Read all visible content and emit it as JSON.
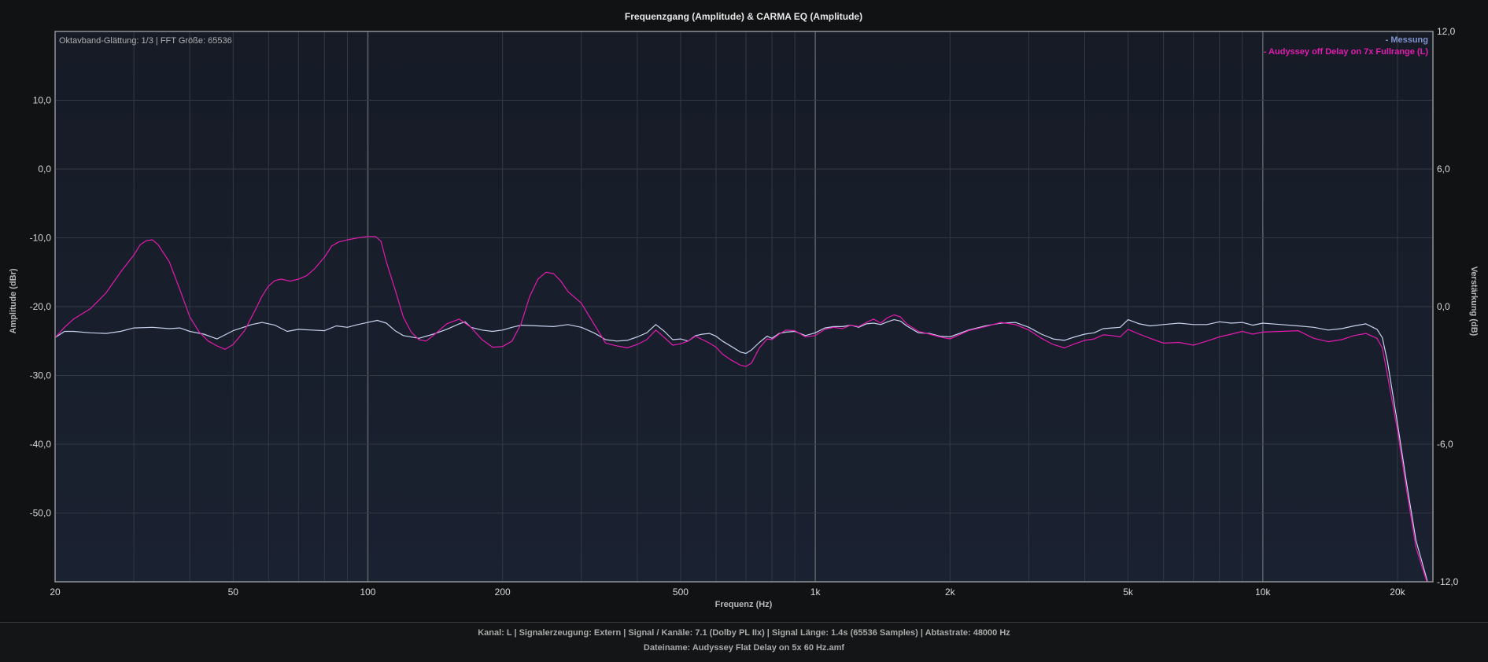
{
  "chart_data": {
    "type": "line",
    "title": "Frequenzgang (Amplitude) & CARMA EQ (Amplitude)",
    "annotation": "Oktavband-Glättung: 1/3 | FFT Größe: 65536",
    "xlabel": "Frequenz (Hz)",
    "ylabel": "Amplitude (dBr)",
    "y2label": "Verstärkung (dB)",
    "x_scale": "log",
    "xlim": [
      20,
      24000
    ],
    "ylim": [
      -60,
      20
    ],
    "y2lim": [
      -12,
      12
    ],
    "x_ticks": [
      {
        "value": 20,
        "label": "20"
      },
      {
        "value": 50,
        "label": "50"
      },
      {
        "value": 100,
        "label": "100"
      },
      {
        "value": 200,
        "label": "200"
      },
      {
        "value": 500,
        "label": "500"
      },
      {
        "value": 1000,
        "label": "1k"
      },
      {
        "value": 2000,
        "label": "2k"
      },
      {
        "value": 5000,
        "label": "5k"
      },
      {
        "value": 10000,
        "label": "10k"
      },
      {
        "value": 20000,
        "label": "20k"
      }
    ],
    "y_ticks": [
      {
        "value": 10,
        "label": "10,0"
      },
      {
        "value": 0,
        "label": "0,0"
      },
      {
        "value": -10,
        "label": "-10,0"
      },
      {
        "value": -20,
        "label": "-20,0"
      },
      {
        "value": -30,
        "label": "-30,0"
      },
      {
        "value": -40,
        "label": "-40,0"
      },
      {
        "value": -50,
        "label": "-50,0"
      }
    ],
    "y2_ticks": [
      {
        "value": 12,
        "label": "12,0"
      },
      {
        "value": 6,
        "label": "6,0"
      },
      {
        "value": 0,
        "label": "0,0"
      },
      {
        "value": -6,
        "label": "-6,0"
      },
      {
        "value": -12,
        "label": "-12,0"
      }
    ],
    "grid": true,
    "legend_position": "top-right",
    "series": [
      {
        "name": "- Messung",
        "color": "#c8d2ee",
        "points": [
          [
            20,
            -24.5
          ],
          [
            21,
            -23.6
          ],
          [
            22,
            -23.6
          ],
          [
            24,
            -23.8
          ],
          [
            26,
            -23.9
          ],
          [
            28,
            -23.6
          ],
          [
            30,
            -23.1
          ],
          [
            33,
            -23.0
          ],
          [
            36,
            -23.2
          ],
          [
            38,
            -23.1
          ],
          [
            40,
            -23.6
          ],
          [
            43,
            -24.0
          ],
          [
            46,
            -24.7
          ],
          [
            50,
            -23.5
          ],
          [
            55,
            -22.6
          ],
          [
            58,
            -22.3
          ],
          [
            62,
            -22.7
          ],
          [
            66,
            -23.6
          ],
          [
            70,
            -23.3
          ],
          [
            75,
            -23.4
          ],
          [
            80,
            -23.5
          ],
          [
            85,
            -22.8
          ],
          [
            90,
            -23.0
          ],
          [
            95,
            -22.6
          ],
          [
            100,
            -22.3
          ],
          [
            105,
            -22.0
          ],
          [
            110,
            -22.4
          ],
          [
            115,
            -23.5
          ],
          [
            120,
            -24.2
          ],
          [
            130,
            -24.6
          ],
          [
            140,
            -24.0
          ],
          [
            150,
            -23.3
          ],
          [
            160,
            -22.5
          ],
          [
            165,
            -22.2
          ],
          [
            170,
            -23.0
          ],
          [
            180,
            -23.4
          ],
          [
            190,
            -23.6
          ],
          [
            200,
            -23.4
          ],
          [
            210,
            -23.0
          ],
          [
            220,
            -22.7
          ],
          [
            240,
            -22.8
          ],
          [
            260,
            -22.9
          ],
          [
            280,
            -22.6
          ],
          [
            300,
            -23.0
          ],
          [
            320,
            -23.8
          ],
          [
            340,
            -24.8
          ],
          [
            360,
            -25.0
          ],
          [
            380,
            -24.9
          ],
          [
            400,
            -24.4
          ],
          [
            420,
            -23.8
          ],
          [
            440,
            -22.6
          ],
          [
            460,
            -23.6
          ],
          [
            480,
            -24.8
          ],
          [
            500,
            -24.7
          ],
          [
            520,
            -25.0
          ],
          [
            540,
            -24.2
          ],
          [
            560,
            -24.0
          ],
          [
            580,
            -23.9
          ],
          [
            600,
            -24.3
          ],
          [
            620,
            -25.0
          ],
          [
            650,
            -25.8
          ],
          [
            680,
            -26.6
          ],
          [
            700,
            -26.8
          ],
          [
            720,
            -26.3
          ],
          [
            750,
            -25.2
          ],
          [
            780,
            -24.3
          ],
          [
            800,
            -24.6
          ],
          [
            830,
            -23.9
          ],
          [
            860,
            -23.7
          ],
          [
            900,
            -23.6
          ],
          [
            950,
            -24.2
          ],
          [
            1000,
            -23.8
          ],
          [
            1050,
            -23.1
          ],
          [
            1100,
            -22.9
          ],
          [
            1150,
            -22.9
          ],
          [
            1200,
            -22.7
          ],
          [
            1250,
            -23.0
          ],
          [
            1300,
            -22.5
          ],
          [
            1350,
            -22.4
          ],
          [
            1400,
            -22.6
          ],
          [
            1450,
            -22.2
          ],
          [
            1500,
            -21.9
          ],
          [
            1550,
            -22.1
          ],
          [
            1600,
            -22.8
          ],
          [
            1700,
            -23.8
          ],
          [
            1800,
            -23.9
          ],
          [
            1900,
            -24.3
          ],
          [
            2000,
            -24.4
          ],
          [
            2200,
            -23.4
          ],
          [
            2400,
            -22.8
          ],
          [
            2600,
            -22.4
          ],
          [
            2800,
            -22.3
          ],
          [
            3000,
            -23.0
          ],
          [
            3200,
            -24.0
          ],
          [
            3400,
            -24.7
          ],
          [
            3600,
            -24.9
          ],
          [
            3800,
            -24.4
          ],
          [
            4000,
            -24.0
          ],
          [
            4200,
            -23.8
          ],
          [
            4400,
            -23.2
          ],
          [
            4600,
            -23.1
          ],
          [
            4800,
            -23.0
          ],
          [
            5000,
            -21.9
          ],
          [
            5300,
            -22.5
          ],
          [
            5600,
            -22.8
          ],
          [
            6000,
            -22.6
          ],
          [
            6500,
            -22.4
          ],
          [
            7000,
            -22.6
          ],
          [
            7500,
            -22.6
          ],
          [
            8000,
            -22.2
          ],
          [
            8500,
            -22.4
          ],
          [
            9000,
            -22.3
          ],
          [
            9500,
            -22.7
          ],
          [
            10000,
            -22.4
          ],
          [
            11000,
            -22.6
          ],
          [
            12000,
            -22.8
          ],
          [
            13000,
            -23.0
          ],
          [
            14000,
            -23.4
          ],
          [
            15000,
            -23.2
          ],
          [
            16000,
            -22.8
          ],
          [
            17000,
            -22.5
          ],
          [
            18000,
            -23.3
          ],
          [
            18500,
            -24.5
          ],
          [
            19000,
            -28
          ],
          [
            20000,
            -37
          ],
          [
            21000,
            -46
          ],
          [
            22000,
            -54
          ],
          [
            23000,
            -58.5
          ],
          [
            23800,
            -62
          ]
        ]
      },
      {
        "name": "- Audyssey off Delay on 7x Fullrange (L)",
        "color": "#e31bb0",
        "points": [
          [
            20,
            -24.5
          ],
          [
            21,
            -23.0
          ],
          [
            22,
            -21.8
          ],
          [
            24,
            -20.3
          ],
          [
            26,
            -18.0
          ],
          [
            28,
            -15.0
          ],
          [
            30,
            -12.5
          ],
          [
            31,
            -11.0
          ],
          [
            32,
            -10.4
          ],
          [
            33,
            -10.3
          ],
          [
            34,
            -11.0
          ],
          [
            36,
            -13.5
          ],
          [
            38,
            -17.5
          ],
          [
            40,
            -21.5
          ],
          [
            42,
            -23.7
          ],
          [
            44,
            -25.0
          ],
          [
            46,
            -25.7
          ],
          [
            48,
            -26.2
          ],
          [
            50,
            -25.5
          ],
          [
            53,
            -23.5
          ],
          [
            56,
            -20.5
          ],
          [
            58,
            -18.5
          ],
          [
            60,
            -17.0
          ],
          [
            62,
            -16.2
          ],
          [
            64,
            -16.0
          ],
          [
            67,
            -16.3
          ],
          [
            70,
            -16.0
          ],
          [
            73,
            -15.5
          ],
          [
            76,
            -14.5
          ],
          [
            80,
            -12.8
          ],
          [
            83,
            -11.2
          ],
          [
            86,
            -10.6
          ],
          [
            90,
            -10.3
          ],
          [
            95,
            -10.0
          ],
          [
            100,
            -9.8
          ],
          [
            104,
            -9.8
          ],
          [
            107,
            -10.5
          ],
          [
            110,
            -13.5
          ],
          [
            115,
            -17.5
          ],
          [
            120,
            -21.5
          ],
          [
            125,
            -23.7
          ],
          [
            130,
            -24.8
          ],
          [
            135,
            -25.0
          ],
          [
            140,
            -24.2
          ],
          [
            150,
            -22.5
          ],
          [
            160,
            -21.8
          ],
          [
            170,
            -23.0
          ],
          [
            180,
            -24.8
          ],
          [
            190,
            -25.9
          ],
          [
            200,
            -25.8
          ],
          [
            210,
            -25.0
          ],
          [
            220,
            -22.5
          ],
          [
            230,
            -18.5
          ],
          [
            240,
            -16.0
          ],
          [
            250,
            -15.0
          ],
          [
            260,
            -15.2
          ],
          [
            270,
            -16.3
          ],
          [
            280,
            -17.8
          ],
          [
            300,
            -19.5
          ],
          [
            320,
            -22.5
          ],
          [
            340,
            -25.3
          ],
          [
            360,
            -25.7
          ],
          [
            380,
            -26.0
          ],
          [
            400,
            -25.5
          ],
          [
            420,
            -24.8
          ],
          [
            440,
            -23.4
          ],
          [
            460,
            -24.5
          ],
          [
            480,
            -25.6
          ],
          [
            500,
            -25.4
          ],
          [
            520,
            -25.0
          ],
          [
            540,
            -24.3
          ],
          [
            560,
            -24.8
          ],
          [
            580,
            -25.3
          ],
          [
            600,
            -25.9
          ],
          [
            620,
            -26.9
          ],
          [
            650,
            -27.8
          ],
          [
            680,
            -28.5
          ],
          [
            700,
            -28.7
          ],
          [
            720,
            -28.2
          ],
          [
            750,
            -26.0
          ],
          [
            780,
            -24.7
          ],
          [
            800,
            -24.8
          ],
          [
            830,
            -24.0
          ],
          [
            860,
            -23.4
          ],
          [
            900,
            -23.5
          ],
          [
            950,
            -24.4
          ],
          [
            1000,
            -24.2
          ],
          [
            1050,
            -23.3
          ],
          [
            1100,
            -23.0
          ],
          [
            1150,
            -23.2
          ],
          [
            1200,
            -22.7
          ],
          [
            1250,
            -22.9
          ],
          [
            1300,
            -22.3
          ],
          [
            1350,
            -21.8
          ],
          [
            1400,
            -22.4
          ],
          [
            1450,
            -21.6
          ],
          [
            1500,
            -21.2
          ],
          [
            1550,
            -21.5
          ],
          [
            1600,
            -22.5
          ],
          [
            1700,
            -23.6
          ],
          [
            1800,
            -24.0
          ],
          [
            1900,
            -24.4
          ],
          [
            2000,
            -24.7
          ],
          [
            2200,
            -23.5
          ],
          [
            2400,
            -22.9
          ],
          [
            2600,
            -22.3
          ],
          [
            2800,
            -22.6
          ],
          [
            3000,
            -23.4
          ],
          [
            3200,
            -24.6
          ],
          [
            3400,
            -25.5
          ],
          [
            3600,
            -26.0
          ],
          [
            3800,
            -25.4
          ],
          [
            4000,
            -24.9
          ],
          [
            4200,
            -24.7
          ],
          [
            4400,
            -24.1
          ],
          [
            4600,
            -24.2
          ],
          [
            4800,
            -24.4
          ],
          [
            5000,
            -23.3
          ],
          [
            5300,
            -24.0
          ],
          [
            5600,
            -24.6
          ],
          [
            6000,
            -25.3
          ],
          [
            6500,
            -25.2
          ],
          [
            7000,
            -25.6
          ],
          [
            7500,
            -25.0
          ],
          [
            8000,
            -24.4
          ],
          [
            8500,
            -24.0
          ],
          [
            9000,
            -23.6
          ],
          [
            9500,
            -24.0
          ],
          [
            10000,
            -23.7
          ],
          [
            11000,
            -23.6
          ],
          [
            12000,
            -23.5
          ],
          [
            13000,
            -24.6
          ],
          [
            14000,
            -25.1
          ],
          [
            15000,
            -24.8
          ],
          [
            16000,
            -24.2
          ],
          [
            17000,
            -23.9
          ],
          [
            18000,
            -24.6
          ],
          [
            18500,
            -26.0
          ],
          [
            19000,
            -30
          ],
          [
            20000,
            -38
          ],
          [
            21000,
            -47
          ],
          [
            22000,
            -55
          ],
          [
            23000,
            -59
          ],
          [
            23800,
            -62
          ]
        ]
      }
    ]
  },
  "footer": {
    "line1": "Kanal: L  |  Signalerzeugung: Extern   |  Signal / Kanäle: 7.1 (Dolby PL IIx)  |  Signal Länge: 1.4s (65536 Samples)  |  Abtastrate: 48000 Hz",
    "line2": "Dateiname: Audyssey Flat Delay on 5x 60 Hz.amf"
  }
}
